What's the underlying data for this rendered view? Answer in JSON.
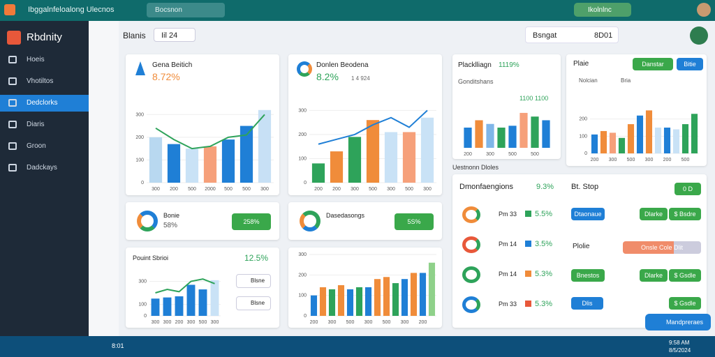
{
  "app": {
    "title": "Ibggalnfeloalong Ulecnos",
    "search": "Bocsnon",
    "pill": "Ikolnlnc"
  },
  "sidebar": {
    "brand": "Rbdnity",
    "items": [
      "Hoeis",
      "Vhotiltos",
      "Dedclorks",
      "Diaris",
      "Groon",
      "Dadckays"
    ]
  },
  "header": {
    "title": "Blanis",
    "button": "Iil 24",
    "search": "Bsngat",
    "search_value": "8D01"
  },
  "cards": [
    {
      "title": "Gena Beitich",
      "value": "8.72%"
    },
    {
      "title": "Donlen Beodena",
      "value": "8.2%",
      "note": "1 4 924"
    },
    {
      "title": "Placklliagn",
      "value": "1119%",
      "subtitle": "Gonditshans",
      "label": "1100 1100"
    },
    {
      "title": "Plaie",
      "button1": "Danstar",
      "button2": "Bitie",
      "legend": [
        "Nolcian",
        "Bria"
      ]
    }
  ],
  "kpis": [
    {
      "title": "Bonie",
      "value": "58%",
      "button": "258%"
    },
    {
      "title": "Dasedasongs",
      "button": "5S%"
    }
  ],
  "mini": {
    "title": "Pouint Sbrioi",
    "value": "12.5%",
    "buttons": [
      "Blsne",
      "Blsne"
    ]
  },
  "section": "Uestnonn Dloles",
  "list": {
    "title": "Dmonfaengions",
    "value": "9.3%",
    "rows": [
      {
        "label": "Pm 33",
        "value": "5.5%"
      },
      {
        "label": "Pm 14",
        "value": "3.5%"
      },
      {
        "label": "Pm 14",
        "value": "5.3%"
      },
      {
        "label": "Pm 33",
        "value": "5.3%"
      }
    ]
  },
  "actions": {
    "title": "Bt. Stop",
    "toggle": "0 D",
    "row1": [
      "Dtaonaue",
      "Dlarke",
      "$ Bsdre"
    ],
    "plan": "Plolie",
    "progress": "Onsle Cole Dlit",
    "row2": [
      "Bnestos",
      "Dlarke",
      "$ Gsdle"
    ],
    "row3": [
      "Dlis",
      "$ Gsdle"
    ]
  },
  "fab": "Mandpreraes",
  "taskbar": {
    "app": "8:01",
    "clock": "9:58 AM",
    "date": "8/5/2024"
  },
  "charts": [
    {
      "type": "bar",
      "categories": [
        "300",
        "200",
        "500",
        "2000",
        "500",
        "500",
        "300"
      ],
      "values": [
        200,
        170,
        150,
        160,
        190,
        250,
        320
      ],
      "colors": [
        "#b8d8f0",
        "#1f7fd6",
        "#c9e2f6",
        "#f6a07a",
        "#1f7fd6",
        "#1f7fd6",
        "#c7e0f5"
      ],
      "line": [
        240,
        190,
        150,
        160,
        200,
        210,
        300
      ],
      "line_color": "#2ea35a",
      "ylim": [
        0,
        350
      ],
      "yticks": [
        0,
        100,
        200,
        300
      ]
    },
    {
      "type": "bar",
      "categories": [
        "200",
        "200",
        "300",
        "500",
        "300",
        "500",
        "300"
      ],
      "values": [
        80,
        130,
        190,
        260,
        210,
        210,
        270
      ],
      "colors": [
        "#2ea35a",
        "#f08c3a",
        "#2ea35a",
        "#f08c3a",
        "#c9e2f6",
        "#f6a07a",
        "#c9e2f6"
      ],
      "line": [
        160,
        180,
        200,
        240,
        270,
        230,
        300
      ],
      "line_color": "#1f7fd6",
      "ylim": [
        0,
        330
      ],
      "yticks": [
        0,
        100,
        200,
        300
      ]
    },
    {
      "type": "bar",
      "categories": [
        "200",
        null,
        "300",
        null,
        "500",
        null,
        "500",
        null
      ],
      "values": [
        110,
        150,
        130,
        110,
        120,
        190,
        170,
        150
      ],
      "colors": [
        "#1f7fd6",
        "#f08c3a",
        "#7fb6e8",
        "#2ea35a",
        "#1f7fd6",
        "#f6a07a",
        "#2ea35a",
        "#1f7fd6"
      ],
      "ylim": [
        0,
        220
      ]
    },
    {
      "type": "bar",
      "categories": [
        "200",
        null,
        "300",
        null,
        "500",
        null,
        "300",
        null,
        "200",
        null,
        "500",
        null
      ],
      "values": [
        110,
        130,
        120,
        90,
        170,
        220,
        250,
        150,
        150,
        140,
        170,
        230
      ],
      "colors": [
        "#1f7fd6",
        "#f08c3a",
        "#f6a07a",
        "#2ea35a",
        "#f08c3a",
        "#1f7fd6",
        "#f08c3a",
        "#c9e2f6",
        "#1f7fd6",
        "#c9e2f6",
        "#2ea35a",
        "#2ea35a"
      ],
      "ylim": [
        0,
        300
      ],
      "yticks": [
        0,
        100,
        200
      ]
    },
    {
      "type": "bar",
      "categories": [
        "300",
        "300",
        "200",
        "300",
        "500",
        "300"
      ],
      "values": [
        150,
        160,
        170,
        270,
        230,
        310
      ],
      "colors": [
        "#1f7fd6",
        "#1f7fd6",
        "#1f7fd6",
        "#1f7fd6",
        "#1f7fd6",
        "#c9e2f6"
      ],
      "line": [
        200,
        230,
        210,
        300,
        320,
        280
      ],
      "line_color": "#2ea35a",
      "ylim": [
        0,
        400
      ],
      "yticks": [
        0,
        100,
        300
      ]
    },
    {
      "type": "bar",
      "categories": [
        "200",
        null,
        "300",
        null,
        "500",
        null,
        "300",
        null,
        "500",
        null,
        "300",
        null,
        "200",
        null
      ],
      "values": [
        100,
        140,
        130,
        150,
        130,
        140,
        140,
        180,
        190,
        160,
        180,
        210,
        210,
        260
      ],
      "colors": [
        "#1f7fd6",
        "#f08c3a",
        "#2ea35a",
        "#f08c3a",
        "#1f7fd6",
        "#2ea35a",
        "#1f7fd6",
        "#f08c3a",
        "#f08c3a",
        "#2ea35a",
        "#1f7fd6",
        "#f08c3a",
        "#1f7fd6",
        "#8fd18a"
      ],
      "ylim": [
        0,
        300
      ],
      "yticks": [
        0,
        100,
        200,
        300
      ]
    }
  ]
}
